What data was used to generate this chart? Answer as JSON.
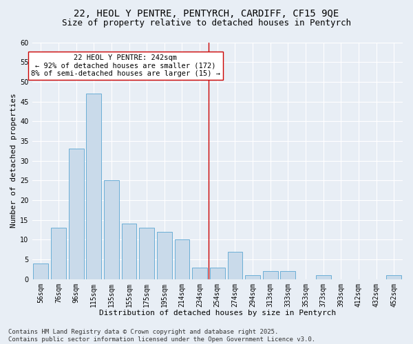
{
  "title_line1": "22, HEOL Y PENTRE, PENTYRCH, CARDIFF, CF15 9QE",
  "title_line2": "Size of property relative to detached houses in Pentyrch",
  "bar_labels": [
    "56sqm",
    "76sqm",
    "96sqm",
    "115sqm",
    "135sqm",
    "155sqm",
    "175sqm",
    "195sqm",
    "214sqm",
    "234sqm",
    "254sqm",
    "274sqm",
    "294sqm",
    "313sqm",
    "333sqm",
    "353sqm",
    "373sqm",
    "393sqm",
    "412sqm",
    "432sqm",
    "452sqm"
  ],
  "bar_values": [
    4,
    13,
    33,
    47,
    25,
    14,
    13,
    12,
    10,
    3,
    3,
    7,
    1,
    2,
    2,
    0,
    1,
    0,
    0,
    0,
    1
  ],
  "bar_color": "#c9daea",
  "bar_edgecolor": "#6aaed6",
  "vline_x_index": 9.5,
  "vline_color": "#cc0000",
  "annotation_text": "22 HEOL Y PENTRE: 242sqm\n← 92% of detached houses are smaller (172)\n8% of semi-detached houses are larger (15) →",
  "annotation_box_edgecolor": "#cc0000",
  "annotation_box_facecolor": "#ffffff",
  "xlabel": "Distribution of detached houses by size in Pentyrch",
  "ylabel": "Number of detached properties",
  "ylim": [
    0,
    60
  ],
  "yticks": [
    0,
    5,
    10,
    15,
    20,
    25,
    30,
    35,
    40,
    45,
    50,
    55,
    60
  ],
  "bg_color": "#e8eef5",
  "plot_bg_color": "#e8eef5",
  "grid_color": "#ffffff",
  "footer_text": "Contains HM Land Registry data © Crown copyright and database right 2025.\nContains public sector information licensed under the Open Government Licence v3.0.",
  "title_fontsize": 10,
  "subtitle_fontsize": 9,
  "axis_label_fontsize": 8,
  "tick_fontsize": 7,
  "annotation_fontsize": 7.5,
  "footer_fontsize": 6.5
}
